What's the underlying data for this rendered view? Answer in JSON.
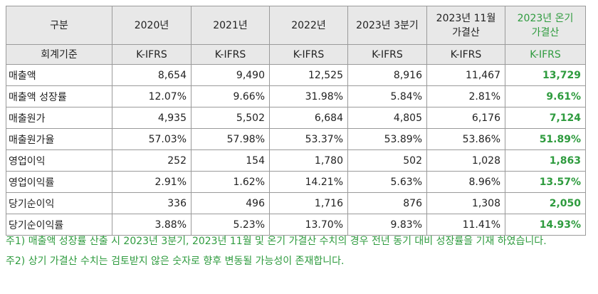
{
  "table": {
    "header": [
      "구분",
      "2020년",
      "2021년",
      "2022년",
      "2023년 3분기",
      "2023년 11월\n가결산",
      "2023년 온기\n가결산"
    ],
    "standard": [
      "회계기준",
      "K-IFRS",
      "K-IFRS",
      "K-IFRS",
      "K-IFRS",
      "K-IFRS",
      "K-IFRS"
    ],
    "rows": [
      [
        "매출액",
        "8,654",
        "9,490",
        "12,525",
        "8,916",
        "11,467",
        "13,729"
      ],
      [
        "매출액 성장률",
        "12.07%",
        "9.66%",
        "31.98%",
        "5.84%",
        "2.81%",
        "9.61%"
      ],
      [
        "매출원가",
        "4,935",
        "5,502",
        "6,684",
        "4,805",
        "6,176",
        "7,124"
      ],
      [
        "매출원가율",
        "57.03%",
        "57.98%",
        "53.37%",
        "53.89%",
        "53.86%",
        "51.89%"
      ],
      [
        "영업이익",
        "252",
        "154",
        "1,780",
        "502",
        "1,028",
        "1,863"
      ],
      [
        "영업이익률",
        "2.91%",
        "1.62%",
        "14.21%",
        "5.63%",
        "8.96%",
        "13.57%"
      ],
      [
        "당기순이익",
        "336",
        "496",
        "1,716",
        "876",
        "1,308",
        "2,050"
      ],
      [
        "당기순이익률",
        "3.88%",
        "5.23%",
        "13.70%",
        "9.83%",
        "11.41%",
        "14.93%"
      ]
    ]
  },
  "notes": [
    "주1) 매출액 성장률 산출 시 2023년 3분기, 2023년 11월 및 온기 가결산 수치의 경우 전년 동기 대비 성장률을 기재 하였습니다.",
    "주2) 상기 가결산 수치는 검토받지 않은 숫자로 향후 변동될 가능성이 존재합니다."
  ]
}
